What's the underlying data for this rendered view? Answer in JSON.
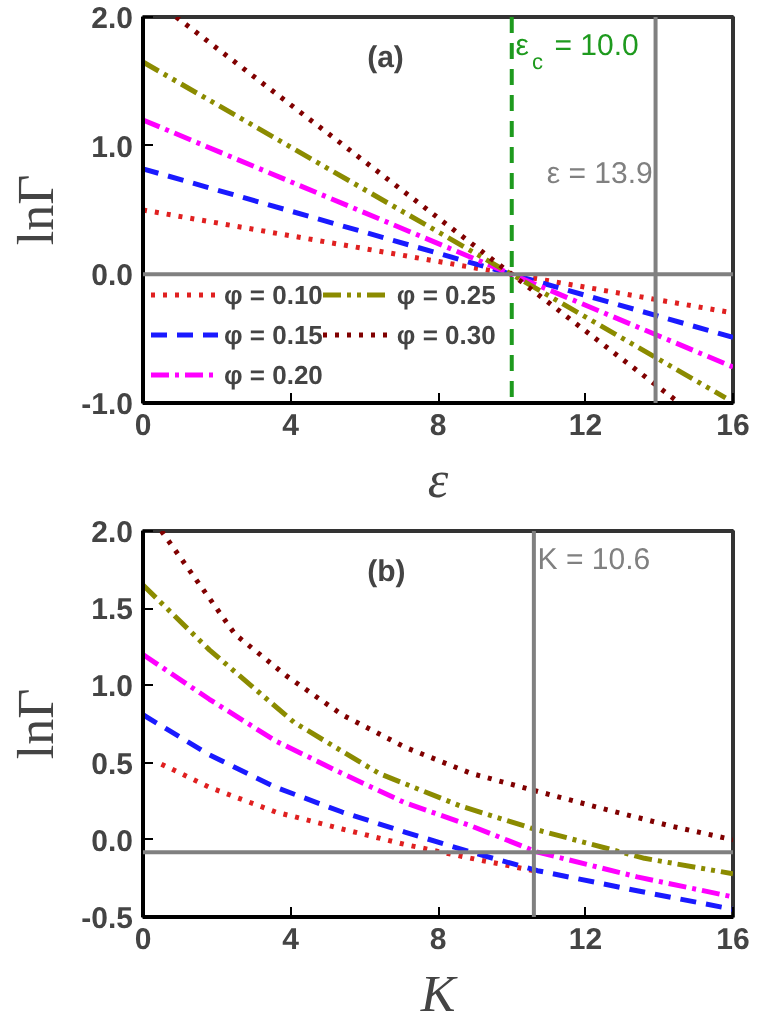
{
  "chart_data": [
    {
      "type": "line",
      "annotations": [
        "(a)"
      ],
      "xlabel": "ε",
      "ylabel": "lnΓ",
      "xlim": [
        0,
        16
      ],
      "ylim": [
        -1.0,
        2.0
      ],
      "xticks": [
        0,
        4,
        8,
        12,
        16
      ],
      "yticks": [
        {
          "value": -1.0,
          "label": "-1.0"
        },
        {
          "value": 0.0,
          "label": "0.0"
        },
        {
          "value": 1.0,
          "label": "1.0"
        },
        {
          "value": 2.0,
          "label": "2.0"
        }
      ],
      "grid": false,
      "legend": "bottom left",
      "marker": "none",
      "ref_lines": [
        {
          "axis": "x",
          "value": 10.0,
          "label": "ε$_{c}$ = 10.0",
          "color": "#1e9a1e",
          "line_style": "dashed"
        },
        {
          "axis": "x",
          "value": 13.9,
          "label": "ε = 13.9",
          "color": "#808080",
          "line_style": "solid"
        },
        {
          "axis": "y",
          "value": 0.0,
          "label": null,
          "color": "#808080",
          "line_style": "solid"
        }
      ],
      "series": [
        {
          "name": "φ = 0.10",
          "color": "#e02020",
          "line_style": "dotted",
          "x": [
            0,
            10,
            16
          ],
          "values": [
            0.5,
            0.0,
            -0.3
          ]
        },
        {
          "name": "φ = 0.15",
          "color": "#1a1aff",
          "line_style": "dashed",
          "x": [
            0,
            10,
            16
          ],
          "values": [
            0.82,
            0.0,
            -0.49
          ]
        },
        {
          "name": "φ = 0.20",
          "color": "#ff00ff",
          "line_style": "dashdot",
          "x": [
            0,
            10,
            16
          ],
          "values": [
            1.2,
            0.0,
            -0.72
          ]
        },
        {
          "name": "φ = 0.25",
          "color": "#8b8b00",
          "line_style": "dashdotdot",
          "x": [
            0,
            10,
            15.8
          ],
          "values": [
            1.65,
            0.0,
            -0.96
          ]
        },
        {
          "name": "φ = 0.30",
          "color": "#800000",
          "line_style": "dotted",
          "x": [
            0.9,
            10,
            14.5
          ],
          "values": [
            2.0,
            0.0,
            -0.99
          ]
        }
      ]
    },
    {
      "type": "line",
      "annotations": [
        "(b)"
      ],
      "xlabel": "K",
      "ylabel": "lnΓ",
      "xlim": [
        0,
        16
      ],
      "ylim": [
        -0.5,
        2.0
      ],
      "xticks": [
        0,
        4,
        8,
        12,
        16
      ],
      "yticks": [
        {
          "value": -0.5,
          "label": "-0.5"
        },
        {
          "value": 0.0,
          "label": "0.0"
        },
        {
          "value": 0.5,
          "label": "0.5"
        },
        {
          "value": 1.0,
          "label": "1.0"
        },
        {
          "value": 1.5,
          "label": "1.5"
        },
        {
          "value": 2.0,
          "label": "2.0"
        }
      ],
      "grid": false,
      "legend": false,
      "marker": "none",
      "ref_lines": [
        {
          "axis": "x",
          "value": 10.6,
          "label": "K = 10.6",
          "color": "#808080",
          "line_style": "solid"
        },
        {
          "axis": "y",
          "value": -0.08,
          "label": null,
          "color": "#808080",
          "line_style": "solid"
        }
      ],
      "series": [
        {
          "color": "#e02020",
          "line_style": "dotted",
          "x": [
            0.5,
            1.8,
            3.6,
            5.4,
            7.1,
            8.9,
            10.6
          ],
          "values": [
            0.49,
            0.34,
            0.18,
            0.07,
            -0.03,
            -0.12,
            -0.2
          ]
        },
        {
          "color": "#1a1aff",
          "line_style": "dashed",
          "x": [
            0,
            1.8,
            3.6,
            5.4,
            7.1,
            8.9,
            10.7,
            13.4,
            16
          ],
          "values": [
            0.81,
            0.55,
            0.34,
            0.18,
            0.05,
            -0.08,
            -0.2,
            -0.33,
            -0.45
          ]
        },
        {
          "color": "#ff00ff",
          "line_style": "dashdot",
          "x": [
            0,
            1.8,
            3.6,
            5.4,
            7.1,
            8.9,
            10.7,
            13.4,
            16
          ],
          "values": [
            1.2,
            0.91,
            0.64,
            0.43,
            0.24,
            0.09,
            -0.08,
            -0.24,
            -0.37
          ]
        },
        {
          "color": "#8b8b00",
          "line_style": "dashdotdot",
          "x": [
            0,
            1.8,
            4.1,
            6.4,
            8.6,
            10.6,
            13.6,
            16
          ],
          "values": [
            1.65,
            1.23,
            0.76,
            0.43,
            0.22,
            0.07,
            -0.12,
            -0.22
          ]
        },
        {
          "color": "#800000",
          "line_style": "dotted",
          "x": [
            0.5,
            2.5,
            3.9,
            5.4,
            7.1,
            8.9,
            10.6,
            12.5,
            14.3,
            16
          ],
          "values": [
            2.0,
            1.33,
            1.06,
            0.81,
            0.6,
            0.43,
            0.32,
            0.2,
            0.09,
            0.0
          ]
        }
      ]
    }
  ]
}
